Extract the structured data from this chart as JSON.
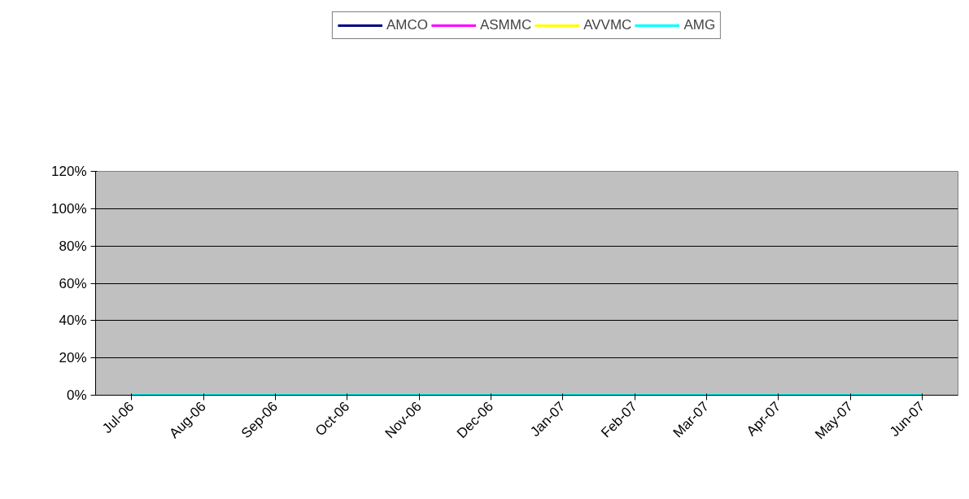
{
  "chart_data": {
    "type": "line",
    "categories": [
      "Jul-06",
      "Aug-06",
      "Sep-06",
      "Oct-06",
      "Nov-06",
      "Dec-06",
      "Jan-07",
      "Feb-07",
      "Mar-07",
      "Apr-07",
      "May-07",
      "Jun-07"
    ],
    "series": [
      {
        "name": "AMCO",
        "color": "#000080",
        "values": [
          null,
          null,
          null,
          null,
          null,
          null,
          null,
          null,
          null,
          null,
          null,
          null
        ]
      },
      {
        "name": "ASMMC",
        "color": "#ff00ff",
        "values": [
          null,
          null,
          null,
          null,
          null,
          null,
          null,
          null,
          null,
          null,
          null,
          null
        ]
      },
      {
        "name": "AVVMC",
        "color": "#ffff00",
        "values": [
          null,
          null,
          null,
          null,
          null,
          null,
          null,
          null,
          null,
          null,
          null,
          null
        ]
      },
      {
        "name": "AMG",
        "color": "#00ffff",
        "values": [
          0,
          0,
          0,
          0,
          0,
          0,
          0,
          0,
          0,
          0,
          0,
          0
        ]
      }
    ],
    "ylim": [
      0,
      120
    ],
    "yticks": [
      {
        "value": 0,
        "label": "0%"
      },
      {
        "value": 20,
        "label": "20%"
      },
      {
        "value": 40,
        "label": "40%"
      },
      {
        "value": 60,
        "label": "60%"
      },
      {
        "value": 80,
        "label": "80%"
      },
      {
        "value": 100,
        "label": "100%"
      },
      {
        "value": 120,
        "label": "120%"
      }
    ],
    "grid": "y",
    "legend": "top",
    "marker": "none",
    "line_style": "solid"
  }
}
